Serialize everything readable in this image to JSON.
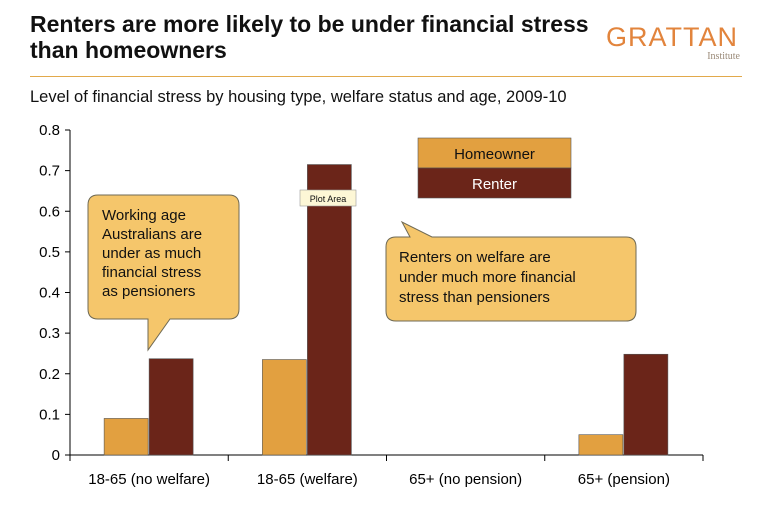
{
  "header": {
    "title": "Renters are more likely to be under financial stress than homeowners",
    "logo_word": "GRATTAN",
    "logo_sub": "Institute"
  },
  "colors": {
    "homeowner": "#e2a040",
    "renter": "#6b2519",
    "callout_fill": "#f5c66b",
    "accent_rule": "#e2a94b"
  },
  "chart_data": {
    "type": "bar",
    "title": "Level of financial stress by housing type, welfare status and age, 2009-10",
    "categories": [
      "18-65 (no welfare)",
      "18-65 (welfare)",
      "65+ (no pension)",
      "65+ (pension)"
    ],
    "series": [
      {
        "name": "Homeowner",
        "values": [
          0.09,
          0.235,
          0,
          0.05
        ]
      },
      {
        "name": "Renter",
        "values": [
          0.237,
          0.715,
          0,
          0.248
        ]
      }
    ],
    "ylim": [
      0,
      0.8
    ],
    "yticks": [
      "0",
      "0.1",
      "0.2",
      "0.3",
      "0.4",
      "0.5",
      "0.6",
      "0.7",
      "0.8"
    ],
    "grid": false,
    "legend_position": "top-center",
    "annotations": [
      {
        "lines": [
          "Working age",
          "Australians are",
          "under as much",
          "financial stress",
          "as pensioners"
        ]
      },
      {
        "lines": [
          "Renters on welfare are",
          "under much more financial",
          "stress than pensioners"
        ]
      }
    ],
    "tooltip": "Plot Area"
  }
}
